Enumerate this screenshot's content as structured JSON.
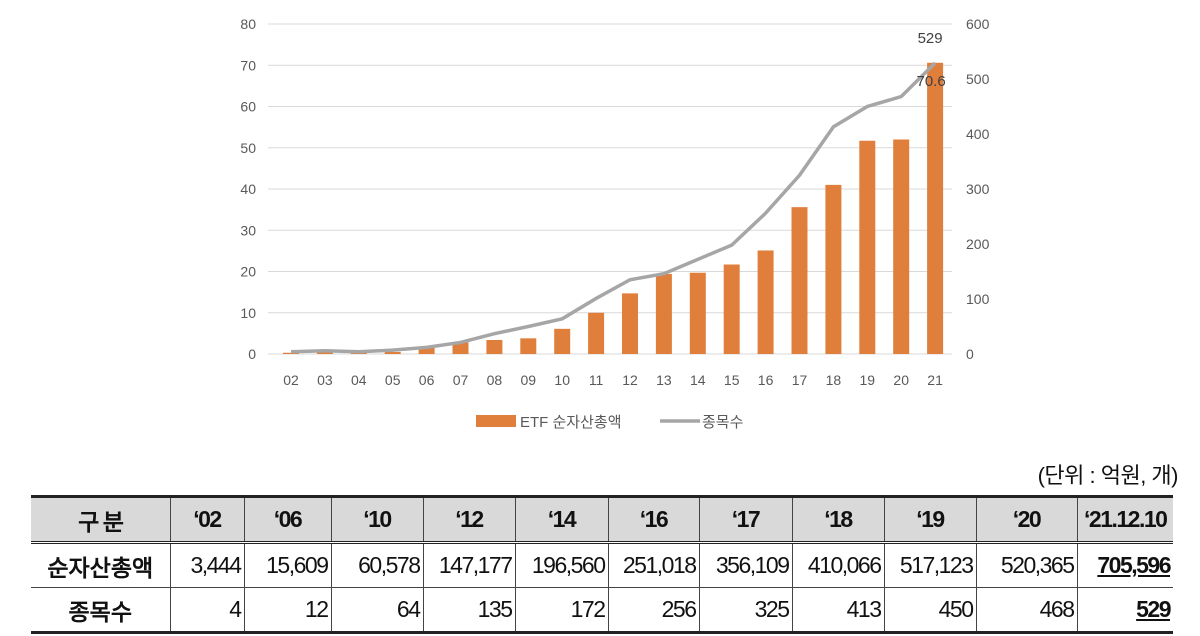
{
  "chart_data": {
    "type": "bar+line",
    "categories": [
      "02",
      "03",
      "04",
      "05",
      "06",
      "07",
      "08",
      "09",
      "10",
      "11",
      "12",
      "13",
      "14",
      "15",
      "16",
      "17",
      "18",
      "19",
      "20",
      "21"
    ],
    "series": [
      {
        "name": "ETF 순자산총액",
        "type": "bar",
        "axis": "left",
        "color": "#e07f3c",
        "values": [
          0.3,
          0.4,
          0.3,
          0.5,
          1.6,
          2.8,
          3.4,
          3.8,
          6.1,
          10.0,
          14.7,
          19.4,
          19.7,
          21.7,
          25.1,
          35.6,
          41.0,
          51.7,
          52.0,
          70.6
        ]
      },
      {
        "name": "종목수",
        "type": "line",
        "axis": "right",
        "color": "#a6a6a6",
        "values": [
          4,
          6,
          4,
          7,
          12,
          21,
          37,
          50,
          64,
          101,
          135,
          146,
          172,
          198,
          256,
          325,
          413,
          450,
          468,
          529
        ]
      }
    ],
    "y_left": {
      "range": [
        0,
        80
      ],
      "ticks": [
        "0",
        "10",
        "20",
        "30",
        "40",
        "50",
        "60",
        "70",
        "80"
      ]
    },
    "y_right": {
      "range": [
        0,
        600
      ],
      "ticks": [
        "0",
        "100",
        "200",
        "300",
        "400",
        "500",
        "600"
      ]
    },
    "annotations": {
      "bar_last": "70.6",
      "line_last": "529"
    },
    "grid": true,
    "legend": "bottom"
  },
  "unit_note": "(단위 : 억원, 개)",
  "table": {
    "header": [
      "구 분",
      "‘02",
      "‘06",
      "‘10",
      "‘12",
      "‘14",
      "‘16",
      "‘17",
      "‘18",
      "‘19",
      "‘20",
      "‘21.12.10"
    ],
    "rows": [
      {
        "label": "순자산총액",
        "values": [
          "3,444",
          "15,609",
          "60,578",
          "147,177",
          "196,560",
          "251,018",
          "356,109",
          "410,066",
          "517,123",
          "520,365",
          "705,596"
        ]
      },
      {
        "label": "종목수",
        "values": [
          "4",
          "12",
          "64",
          "135",
          "172",
          "256",
          "325",
          "413",
          "450",
          "468",
          "529"
        ]
      }
    ]
  }
}
